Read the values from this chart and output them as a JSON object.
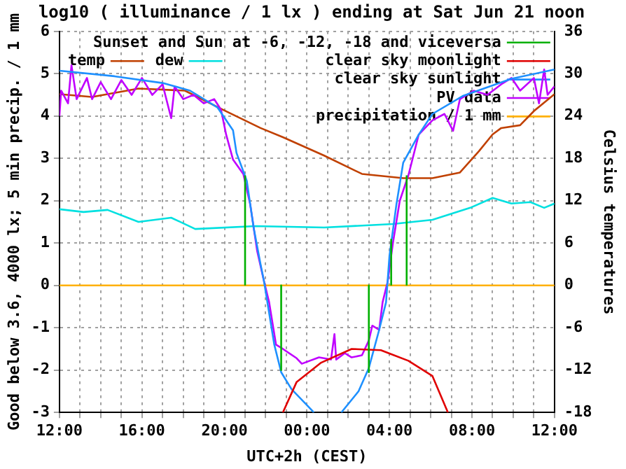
{
  "chart_data": {
    "type": "line",
    "title": "log10 ( illuminance / 1 lx ) ending at Sat Jun 21 noon",
    "xlabel": "UTC+2h (CEST)",
    "ylabel": "Good below 3.6, 4000 lx; 5 min precip. / 1 mm",
    "y2label": "Celsius temperatures",
    "xlim": [
      "--06-20T12:00",
      "--06-21T12:00"
    ],
    "xticks": [
      {
        "value": "--06-20T12:00",
        "label": "12:00"
      },
      {
        "value": "--06-20T13:00",
        "label": null
      },
      {
        "value": "--06-20T14:00",
        "label": null
      },
      {
        "value": "--06-20T15:00",
        "label": null
      },
      {
        "value": "--06-20T16:00",
        "label": "16:00"
      },
      {
        "value": "--06-20T17:00",
        "label": null
      },
      {
        "value": "--06-20T18:00",
        "label": null
      },
      {
        "value": "--06-20T19:00",
        "label": null
      },
      {
        "value": "--06-20T20:00",
        "label": "20:00"
      },
      {
        "value": "--06-20T21:00",
        "label": null
      },
      {
        "value": "--06-20T22:00",
        "label": null
      },
      {
        "value": "--06-20T23:00",
        "label": null
      },
      {
        "value": "--06-21T00:00",
        "label": "00:00"
      },
      {
        "value": "--06-21T01:00",
        "label": null
      },
      {
        "value": "--06-21T02:00",
        "label": null
      },
      {
        "value": "--06-21T03:00",
        "label": null
      },
      {
        "value": "--06-21T04:00",
        "label": "04:00"
      },
      {
        "value": "--06-21T05:00",
        "label": null
      },
      {
        "value": "--06-21T06:00",
        "label": null
      },
      {
        "value": "--06-21T07:00",
        "label": null
      },
      {
        "value": "--06-21T08:00",
        "label": "08:00"
      },
      {
        "value": "--06-21T09:00",
        "label": null
      },
      {
        "value": "--06-21T10:00",
        "label": null
      },
      {
        "value": "--06-21T11:00",
        "label": null
      },
      {
        "value": "--06-21T12:00",
        "label": "12:00"
      }
    ],
    "ylim": [
      -3,
      6
    ],
    "yticks": [
      -3,
      -2,
      -1,
      0,
      1,
      2,
      3,
      4,
      5,
      6
    ],
    "y2lim": [
      -18,
      36
    ],
    "y2ticks": [
      -18,
      -12,
      -6,
      0,
      6,
      12,
      18,
      24,
      30,
      36
    ],
    "grid": true,
    "legend": "top right",
    "marker": "none",
    "line_style": "solid",
    "series": [
      {
        "name": "Sunset and Sun at -6, -12, -18 and viceversa",
        "color": "#00b000",
        "x": [
          "--06-20T21:00",
          "--06-20T21:00",
          null,
          "--06-20T22:45",
          "--06-20T22:45",
          null,
          "--06-21T03:00",
          "--06-21T03:00",
          null,
          "--06-21T04:05",
          "--06-21T04:05",
          null,
          "--06-21T04:50",
          "--06-21T04:50"
        ],
        "values": [
          0,
          2.6,
          null,
          0,
          -2,
          null,
          0,
          -2.05,
          null,
          0,
          1.1,
          null,
          0,
          2.6
        ]
      },
      {
        "name": "clear sky moonlight",
        "color": "#e00000",
        "x": [
          "--06-20T22:50",
          "--06-20T23:30",
          "--06-21T00:40",
          "--06-21T02:10",
          "--06-21T03:35",
          "--06-21T04:55",
          "--06-21T06:05",
          "--06-21T06:50"
        ],
        "values": [
          -3,
          -2.28,
          -1.83,
          -1.5,
          -1.53,
          -1.78,
          -2.14,
          -3
        ]
      },
      {
        "name": "clear sky sunlight",
        "color": "#1e90ff",
        "x": [
          "--06-20T12:00",
          "--06-20T14:40",
          "--06-20T17:00",
          "--06-20T18:20",
          "--06-20T19:40",
          "--06-20T20:25",
          "--06-20T20:35",
          "--06-20T21:05",
          "--06-20T21:25",
          "--06-20T21:45",
          "--06-20T21:55",
          "--06-20T22:25",
          "--06-20T22:45",
          "--06-20T23:15",
          "--06-21T00:05",
          "--06-21T00:20",
          null,
          "--06-21T01:40",
          "--06-21T02:30",
          "--06-21T03:00",
          "--06-21T03:30",
          "--06-21T03:50",
          "--06-21T04:00",
          "--06-21T04:20",
          "--06-21T04:40",
          "--06-21T05:25",
          "--06-21T06:05",
          "--06-21T07:35",
          "--06-21T09:55",
          "--06-21T12:00"
        ],
        "values": [
          5.07,
          4.94,
          4.78,
          4.6,
          4.2,
          3.66,
          3.13,
          2.47,
          1.36,
          0.5,
          0.1,
          -1.4,
          -2.05,
          -2.45,
          -2.87,
          -3,
          null,
          -3,
          -2.5,
          -1.95,
          -1.05,
          -0.4,
          0.7,
          1.9,
          2.9,
          3.56,
          4.05,
          4.48,
          4.88,
          5.1
        ]
      },
      {
        "name": "PV data",
        "color": "#c000ff",
        "x": [
          "--06-20T12:00",
          "--06-20T12:05",
          "--06-20T12:25",
          "--06-20T12:35",
          "--06-20T12:50",
          "--06-20T13:20",
          "--06-20T13:35",
          "--06-20T14:00",
          "--06-20T14:30",
          "--06-20T15:00",
          "--06-20T15:30",
          "--06-20T16:00",
          "--06-20T16:30",
          "--06-20T17:00",
          "--06-20T17:25",
          "--06-20T17:35",
          "--06-20T18:00",
          "--06-20T18:30",
          "--06-20T19:00",
          "--06-20T19:30",
          "--06-20T19:50",
          "--06-20T20:05",
          "--06-20T20:25",
          "--06-20T20:55",
          "--06-20T21:15",
          "--06-20T21:35",
          "--06-20T21:55",
          "--06-20T22:10",
          "--06-20T22:30",
          "--06-20T22:50",
          "--06-20T23:30",
          "--06-20T23:45",
          "--06-21T00:35",
          "--06-21T01:10",
          "--06-21T01:20",
          "--06-21T01:25",
          "--06-21T01:50",
          "--06-21T02:10",
          "--06-21T02:40",
          "--06-21T03:00",
          "--06-21T03:10",
          "--06-21T03:30",
          "--06-21T03:40",
          "--06-21T03:55",
          "--06-21T04:10",
          "--06-21T04:30",
          "--06-21T04:55",
          "--06-21T05:25",
          "--06-21T06:05",
          "--06-21T06:40",
          "--06-21T07:05",
          "--06-21T07:25",
          "--06-21T08:05",
          "--06-21T08:45",
          "--06-21T09:25",
          "--06-21T09:55",
          "--06-21T10:20",
          "--06-21T11:00",
          "--06-21T11:15",
          "--06-21T11:30",
          "--06-21T11:40",
          "--06-21T12:00"
        ],
        "values": [
          4,
          4.6,
          4.3,
          5.2,
          4.4,
          4.9,
          4.4,
          4.8,
          4.4,
          4.85,
          4.5,
          4.9,
          4.5,
          4.75,
          3.95,
          4.7,
          4.4,
          4.5,
          4.3,
          4.4,
          4.15,
          3.56,
          2.97,
          2.63,
          1.91,
          0.82,
          0.1,
          -0.4,
          -1.4,
          -1.5,
          -1.72,
          -1.85,
          -1.7,
          -1.75,
          -1.15,
          -1.75,
          -1.6,
          -1.7,
          -1.65,
          -1.3,
          -0.95,
          -1.05,
          -0.4,
          0.1,
          1,
          2,
          2.6,
          3.56,
          3.9,
          4.05,
          3.65,
          4.4,
          4.6,
          4.5,
          4.75,
          4.9,
          4.6,
          4.9,
          4.3,
          5.1,
          4.5,
          4.7
        ]
      },
      {
        "name": "precipitation / 1 mm",
        "color": "#ffb000",
        "x": [
          "--06-20T12:00",
          "--06-21T12:00"
        ],
        "values": [
          0,
          0
        ]
      },
      {
        "name": "temp",
        "color": "#c04000",
        "axis": "y2",
        "x": [
          "--06-20T12:00",
          "--06-20T13:35",
          "--06-20T15:50",
          "--06-20T18:05",
          "--06-20T19:55",
          "--06-20T21:45",
          "--06-20T22:50",
          "--06-21T00:50",
          "--06-21T02:40",
          "--06-21T04:40",
          "--06-21T06:05",
          "--06-21T07:25",
          "--06-21T08:20",
          "--06-21T09:00",
          "--06-21T09:25",
          "--06-21T10:20",
          "--06-21T11:00",
          "--06-21T12:00"
        ],
        "values": [
          27.1,
          26.7,
          27.9,
          27.6,
          24.9,
          22.3,
          21,
          18.4,
          15.8,
          15.2,
          15.2,
          16,
          19,
          21.4,
          22.3,
          22.7,
          24.7,
          27.1
        ]
      },
      {
        "name": "dew",
        "color": "#00e0e0",
        "axis": "y2",
        "x": [
          "--06-20T12:00",
          "--06-20T13:10",
          "--06-20T14:20",
          "--06-20T15:50",
          "--06-20T17:25",
          "--06-20T18:35",
          "--06-20T21:30",
          "--06-21T00:50",
          "--06-21T04:10",
          "--06-21T06:05",
          "--06-21T07:55",
          "--06-21T09:00",
          "--06-21T09:55",
          "--06-21T10:50",
          "--06-21T11:30",
          "--06-21T12:00"
        ],
        "values": [
          10.8,
          10.4,
          10.7,
          9,
          9.6,
          8,
          8.4,
          8.2,
          8.7,
          9.3,
          11,
          12.4,
          11.6,
          11.8,
          11,
          11.6
        ]
      }
    ]
  }
}
